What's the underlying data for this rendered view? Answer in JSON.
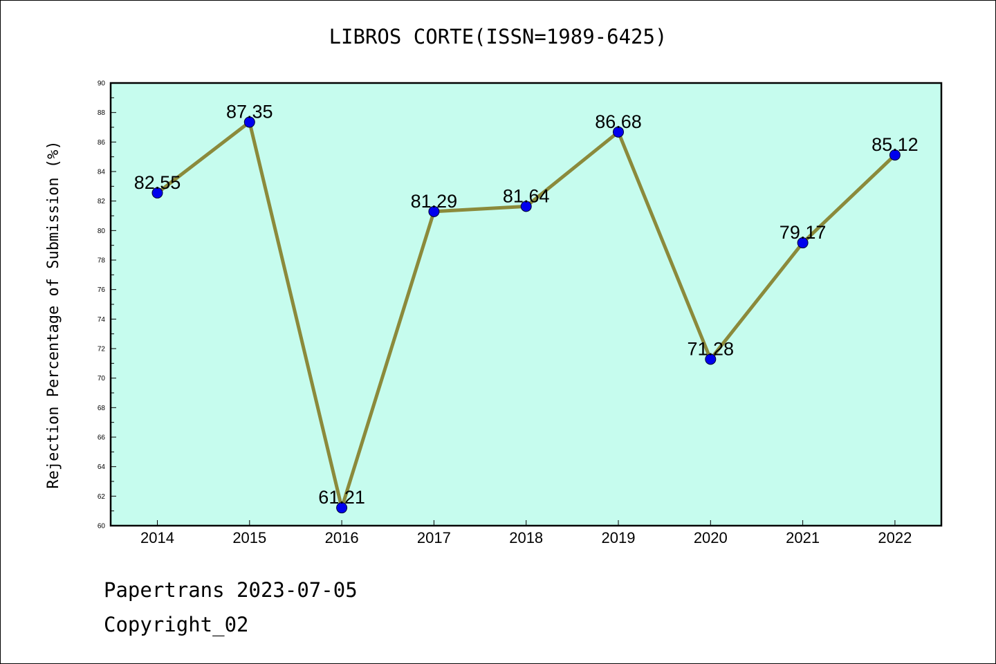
{
  "header": {
    "title": "LIBROS CORTE(ISSN=1989-6425)"
  },
  "footer": {
    "line1": "Papertrans 2023-07-05",
    "line2": "Copyright_02"
  },
  "chart_data": {
    "type": "line",
    "title": "LIBROS CORTE(ISSN=1989-6425)",
    "xlabel": "",
    "ylabel": "Rejection Percentage of Submission (%)",
    "categories": [
      "2014",
      "2015",
      "2016",
      "2017",
      "2018",
      "2019",
      "2020",
      "2021",
      "2022"
    ],
    "values": [
      82.55,
      87.35,
      61.21,
      81.29,
      81.64,
      86.68,
      71.28,
      79.17,
      85.12
    ],
    "value_labels": [
      "82.55",
      "87.35",
      "61.21",
      "81.29",
      "81.64",
      "86.68",
      "71.28",
      "79.17",
      "85.12"
    ],
    "ylim": [
      60,
      90
    ],
    "yticks": [
      60,
      62,
      64,
      66,
      68,
      70,
      72,
      74,
      76,
      78,
      80,
      82,
      84,
      86,
      88,
      90
    ],
    "grid": false,
    "colors": {
      "plot_bg": "#c6fcee",
      "line": "#8b8a3b",
      "marker": "#0000ee",
      "marker_edge": "#000033"
    }
  }
}
